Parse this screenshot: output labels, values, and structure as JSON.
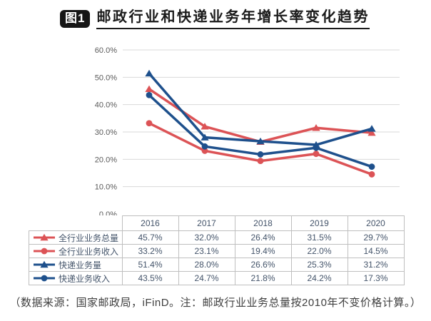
{
  "figure": {
    "label": "图1",
    "title": "邮政行业和快递业务年增长率变化趋势"
  },
  "source_note": "（数据来源：国家邮政局，iFinD。注：邮政行业业务总量按2010年不变价格计算。）",
  "colors": {
    "red_series": "#DC5356",
    "blue_series": "#1E508C",
    "gridline": "#D9D9D9",
    "table_border": "#BFBFBF",
    "axis_text": "#595959",
    "table_text": "#44546A"
  },
  "chart_data": {
    "type": "line",
    "title": "邮政行业和快递业务年增长率变化趋势",
    "categories": [
      "2016",
      "2017",
      "2018",
      "2019",
      "2020"
    ],
    "series": [
      {
        "name": "全行业业务总量",
        "color": "#DC5356",
        "marker": "triangle",
        "values": [
          45.7,
          32.0,
          26.4,
          31.5,
          29.7
        ]
      },
      {
        "name": "全行业业务收入",
        "color": "#DC5356",
        "marker": "circle",
        "values": [
          33.2,
          23.1,
          19.4,
          22.0,
          14.5
        ]
      },
      {
        "name": "快递业务量",
        "color": "#1E508C",
        "marker": "triangle",
        "values": [
          51.4,
          28.0,
          26.6,
          25.3,
          31.2
        ]
      },
      {
        "name": "快递业务收入",
        "color": "#1E508C",
        "marker": "circle",
        "values": [
          43.5,
          24.7,
          21.8,
          24.2,
          17.3
        ]
      }
    ],
    "ylim": [
      0,
      60
    ],
    "ytick_step": 10,
    "ytick_format": "percent_one_decimal",
    "grid": "horizontal",
    "legend_position": "table-left-column",
    "data_table_shown": true
  }
}
